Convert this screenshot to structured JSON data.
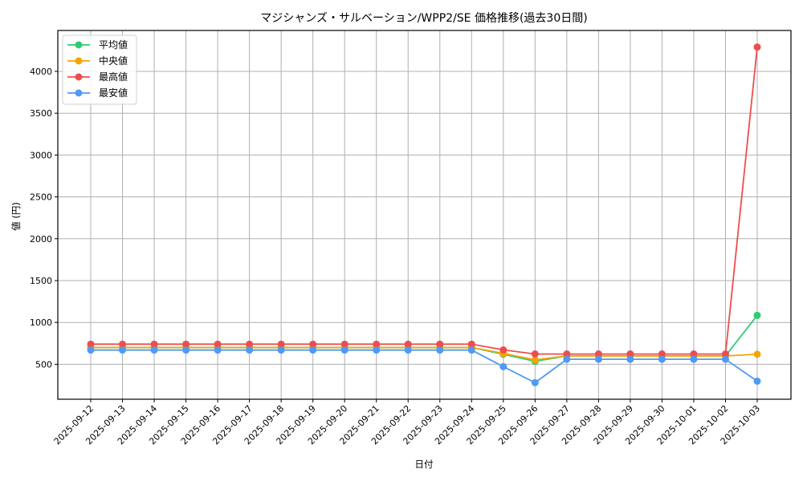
{
  "chart_data": {
    "type": "line",
    "title": "マジシャンズ・サルベーション/WPP2/SE 価格推移(過去30日間)",
    "xlabel": "日付",
    "ylabel": "値 (円)",
    "x": [
      "2025-09-12",
      "2025-09-13",
      "2025-09-14",
      "2025-09-15",
      "2025-09-16",
      "2025-09-17",
      "2025-09-18",
      "2025-09-19",
      "2025-09-20",
      "2025-09-21",
      "2025-09-22",
      "2025-09-23",
      "2025-09-24",
      "2025-09-25",
      "2025-09-26",
      "2025-09-27",
      "2025-09-28",
      "2025-09-29",
      "2025-09-30",
      "2025-10-01",
      "2025-10-02",
      "2025-10-03"
    ],
    "yticks": [
      500,
      1000,
      1500,
      2000,
      2500,
      3000,
      3500,
      4000
    ],
    "ylim": [
      0,
      4480
    ],
    "grid": true,
    "legend_position": "upper left",
    "series": [
      {
        "name": "平均値",
        "color": "#2ecc71",
        "values": [
          700,
          700,
          700,
          700,
          700,
          700,
          700,
          700,
          700,
          700,
          700,
          700,
          700,
          620,
          535,
          600,
          600,
          600,
          600,
          600,
          600,
          1085
        ]
      },
      {
        "name": "中央値",
        "color": "#f5a500",
        "values": [
          700,
          700,
          700,
          700,
          700,
          700,
          700,
          700,
          700,
          700,
          700,
          700,
          700,
          630,
          553,
          600,
          600,
          600,
          600,
          600,
          600,
          620
        ]
      },
      {
        "name": "最高値",
        "color": "#ef4d4d",
        "values": [
          740,
          740,
          740,
          740,
          740,
          740,
          740,
          740,
          740,
          740,
          740,
          740,
          740,
          672,
          623,
          623,
          623,
          623,
          623,
          623,
          623,
          4290
        ]
      },
      {
        "name": "最安値",
        "color": "#4f9af5",
        "values": [
          670,
          670,
          670,
          670,
          670,
          670,
          670,
          670,
          670,
          670,
          670,
          670,
          670,
          472,
          280,
          560,
          560,
          560,
          560,
          560,
          560,
          298
        ]
      }
    ]
  }
}
